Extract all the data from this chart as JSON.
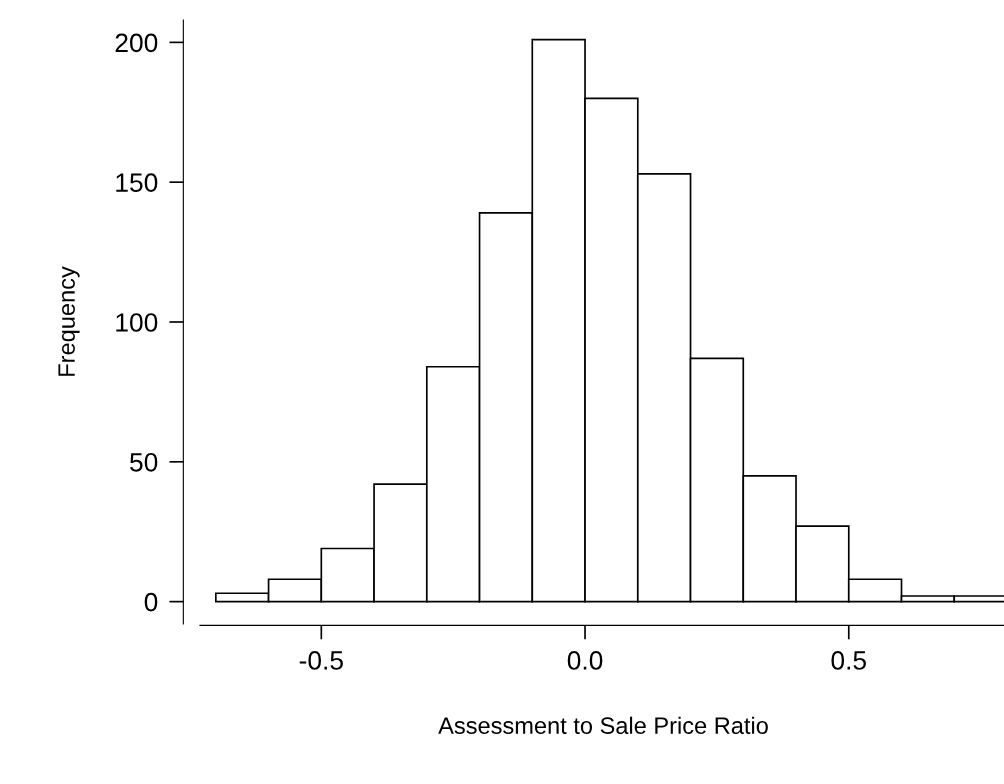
{
  "chart_data": {
    "type": "histogram",
    "xlabel": "Assessment to Sale Price Ratio",
    "ylabel": "Frequency",
    "bins": [
      -0.7,
      -0.6,
      -0.5,
      -0.4,
      -0.3,
      -0.2,
      -0.1,
      0.0,
      0.1,
      0.2,
      0.3,
      0.4,
      0.5,
      0.6,
      0.7,
      0.8
    ],
    "values": [
      3,
      8,
      19,
      42,
      84,
      139,
      201,
      180,
      153,
      87,
      45,
      27,
      8,
      2,
      2
    ],
    "color": "#ffffff",
    "xlim": [
      -0.73,
      0.8
    ],
    "ylim": [
      -8,
      208
    ],
    "xticks": [
      {
        "value": -0.5,
        "label": "-0.5"
      },
      {
        "value": 0.0,
        "label": "0.0"
      },
      {
        "value": 0.5,
        "label": "0.5"
      }
    ],
    "yticks": [
      0,
      50,
      100,
      150,
      200
    ],
    "grid": false
  }
}
